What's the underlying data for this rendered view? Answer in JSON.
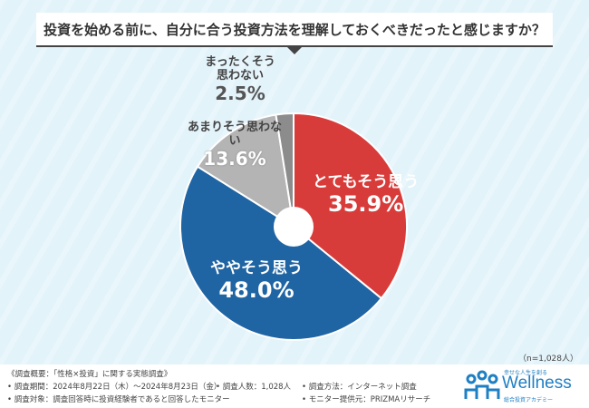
{
  "title": "投資を始める前に、自分に合う投資方法を理解しておくべきだったと感じますか？",
  "chart_data": {
    "type": "pie",
    "title": "投資を始める前に、自分に合う投資方法を理解しておくべきだったと感じますか？",
    "categories": [
      "とてもそう思う",
      "ややそう思う",
      "あまりそう思わない",
      "まったくそう思わない"
    ],
    "values": [
      35.9,
      48.0,
      13.6,
      2.5
    ],
    "value_labels": [
      "35.9%",
      "48.0%",
      "13.6%",
      "2.5%"
    ],
    "colors": [
      "#d83c3a",
      "#1f64a3",
      "#b4b4b4",
      "#8c8c8c"
    ],
    "start": "12 o'clock, clockwise",
    "donut_hole": true
  },
  "sample_size": "（n=1,028人）",
  "footer": {
    "survey": "《調査概要：「性格×投資」に関する実態調査》",
    "period": "• 調査期間：2024年8月22日（木）～2024年8月23日（金）",
    "count": "• 調査人数：1,028人",
    "method": "• 調査方法：インターネット調査",
    "target": "• 調査対象：調査回答時に投資経験者であると回答したモニター",
    "provider": "• モニター提供元：PRIZMAリサーチ"
  },
  "logo": {
    "tagline": "幸せな人生を創る",
    "name": "Wellness",
    "sub": "総合投資アカデミー",
    "color": "#1f7fc4"
  }
}
